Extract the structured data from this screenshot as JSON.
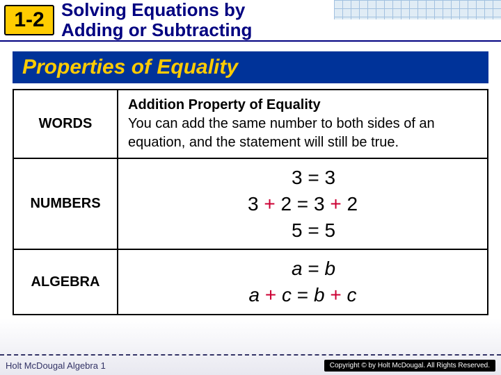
{
  "header": {
    "badge": "1-2",
    "title_line1": "Solving Equations by",
    "title_line2": "Adding or Subtracting"
  },
  "section_banner": "Properties of Equality",
  "rows": {
    "words": {
      "label": "WORDS",
      "prop_title": "Addition Property of Equality",
      "body": "You can add the same number to both sides of an equation, and the statement will still be true."
    },
    "numbers": {
      "label": "NUMBERS",
      "eq1_lhs": "3",
      "eq1_rhs": "3",
      "eq2_lhs_a": "3",
      "eq2_lhs_b": "2",
      "eq2_rhs_a": "3",
      "eq2_rhs_b": "2",
      "eq3_lhs": "5",
      "eq3_rhs": "5"
    },
    "algebra": {
      "label": "ALGEBRA",
      "eq1_lhs": "a",
      "eq1_rhs": "b",
      "eq2_lhs_a": "a",
      "eq2_lhs_b": "c",
      "eq2_rhs_a": "b",
      "eq2_rhs_b": "c"
    }
  },
  "footer": {
    "left": "Holt McDougal Algebra 1",
    "right": "Copyright © by Holt McDougal. All Rights Reserved."
  },
  "colors": {
    "banner_bg": "#003399",
    "banner_fg": "#ffcc00",
    "badge_bg": "#ffcc00",
    "title_fg": "#000080",
    "accent_red": "#cc0033",
    "border": "#000000"
  }
}
